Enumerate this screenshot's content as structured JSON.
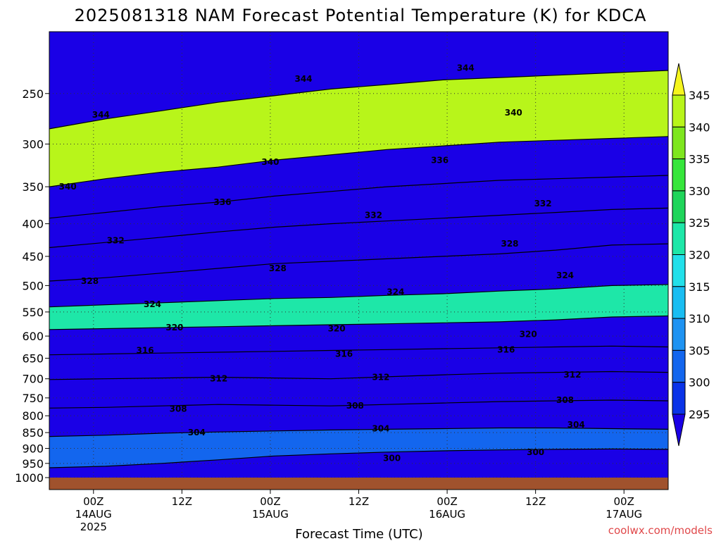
{
  "chart_data": {
    "type": "heatmap",
    "title": "2025081318 NAM Forecast Potential Temperature (K) for KDCA",
    "xlabel": "Forecast Time (UTC)",
    "ylabel": "",
    "credit": "coolwx.com/models",
    "x_ticks": [
      {
        "label": "00Z",
        "sub": "14AUG",
        "sub2": "2025",
        "hours": 6
      },
      {
        "label": "12Z",
        "sub": "",
        "sub2": "",
        "hours": 18
      },
      {
        "label": "00Z",
        "sub": "15AUG",
        "sub2": "",
        "hours": 30
      },
      {
        "label": "12Z",
        "sub": "",
        "sub2": "",
        "hours": 42
      },
      {
        "label": "00Z",
        "sub": "16AUG",
        "sub2": "",
        "hours": 54
      },
      {
        "label": "12Z",
        "sub": "",
        "sub2": "",
        "hours": 66
      },
      {
        "label": "00Z",
        "sub": "17AUG",
        "sub2": "",
        "hours": 78
      }
    ],
    "x_range_hours": [
      0,
      84
    ],
    "y_ticks": [
      250,
      300,
      350,
      400,
      450,
      500,
      550,
      600,
      650,
      700,
      750,
      800,
      850,
      900,
      950,
      1000
    ],
    "y_range_hpa": [
      200,
      1000
    ],
    "y_scale": "log-pressure (inverted)",
    "color_scale": {
      "levels": [
        295,
        300,
        305,
        310,
        315,
        320,
        325,
        330,
        335,
        340,
        345
      ],
      "colors": [
        "#1a00e6",
        "#0a33e8",
        "#1366ee",
        "#1e93f2",
        "#19bdf2",
        "#22e0ea",
        "#1ee7a8",
        "#1fd55a",
        "#36e63b",
        "#7ee61e",
        "#b8f51a",
        "#f5f51e"
      ]
    },
    "contours": [
      {
        "value": 300,
        "profile": [
          965,
          960,
          950,
          938,
          925,
          918,
          912,
          908,
          905,
          903,
          902,
          903
        ]
      },
      {
        "value": 304,
        "profile": [
          862,
          858,
          852,
          848,
          845,
          842,
          840,
          838,
          836,
          836,
          838,
          840
        ]
      },
      {
        "value": 308,
        "profile": [
          778,
          776,
          772,
          768,
          770,
          772,
          768,
          764,
          760,
          758,
          756,
          758
        ]
      },
      {
        "value": 312,
        "profile": [
          702,
          700,
          698,
          696,
          698,
          700,
          695,
          690,
          686,
          684,
          682,
          684
        ]
      },
      {
        "value": 316,
        "profile": [
          642,
          640,
          638,
          636,
          634,
          632,
          630,
          628,
          626,
          624,
          622,
          624
        ]
      },
      {
        "value": 320,
        "profile": [
          586,
          584,
          582,
          580,
          578,
          576,
          574,
          572,
          570,
          566,
          560,
          558
        ]
      },
      {
        "value": 324,
        "profile": [
          540,
          536,
          532,
          528,
          524,
          522,
          518,
          515,
          510,
          506,
          500,
          498
        ]
      },
      {
        "value": 328,
        "profile": [
          492,
          486,
          478,
          470,
          462,
          458,
          454,
          450,
          446,
          440,
          432,
          430
        ]
      },
      {
        "value": 332,
        "profile": [
          436,
          428,
          420,
          412,
          405,
          400,
          396,
          392,
          388,
          384,
          380,
          378
        ]
      },
      {
        "value": 336,
        "profile": [
          392,
          384,
          376,
          370,
          362,
          356,
          350,
          346,
          342,
          340,
          338,
          336
        ]
      },
      {
        "value": 340,
        "profile": [
          350,
          340,
          332,
          326,
          318,
          312,
          306,
          302,
          298,
          296,
          294,
          292
        ]
      },
      {
        "value": 344,
        "profile": [
          284,
          274,
          266,
          258,
          252,
          246,
          242,
          238,
          236,
          234,
          232,
          230
        ]
      }
    ],
    "contour_labels": [
      {
        "text": "344",
        "hours": 7,
        "hpa": 270
      },
      {
        "text": "344",
        "hours": 34.5,
        "hpa": 237
      },
      {
        "text": "344",
        "hours": 56.5,
        "hpa": 228
      },
      {
        "text": "340",
        "hours": 2.5,
        "hpa": 350
      },
      {
        "text": "340",
        "hours": 30,
        "hpa": 320
      },
      {
        "text": "340",
        "hours": 63,
        "hpa": 268
      },
      {
        "text": "336",
        "hours": 23.5,
        "hpa": 370
      },
      {
        "text": "336",
        "hours": 53,
        "hpa": 318
      },
      {
        "text": "332",
        "hours": 9,
        "hpa": 425
      },
      {
        "text": "332",
        "hours": 44,
        "hpa": 388
      },
      {
        "text": "332",
        "hours": 67,
        "hpa": 372
      },
      {
        "text": "328",
        "hours": 5.5,
        "hpa": 492
      },
      {
        "text": "328",
        "hours": 31,
        "hpa": 470
      },
      {
        "text": "328",
        "hours": 62.5,
        "hpa": 430
      },
      {
        "text": "324",
        "hours": 14,
        "hpa": 535
      },
      {
        "text": "324",
        "hours": 47,
        "hpa": 512
      },
      {
        "text": "324",
        "hours": 70,
        "hpa": 482
      },
      {
        "text": "320",
        "hours": 17,
        "hpa": 582
      },
      {
        "text": "320",
        "hours": 39,
        "hpa": 584
      },
      {
        "text": "320",
        "hours": 65,
        "hpa": 596
      },
      {
        "text": "316",
        "hours": 13,
        "hpa": 632
      },
      {
        "text": "316",
        "hours": 40,
        "hpa": 640
      },
      {
        "text": "316",
        "hours": 62,
        "hpa": 630
      },
      {
        "text": "312",
        "hours": 23,
        "hpa": 700
      },
      {
        "text": "312",
        "hours": 45,
        "hpa": 696
      },
      {
        "text": "312",
        "hours": 71,
        "hpa": 690
      },
      {
        "text": "308",
        "hours": 17.5,
        "hpa": 780
      },
      {
        "text": "308",
        "hours": 41.5,
        "hpa": 772
      },
      {
        "text": "308",
        "hours": 70,
        "hpa": 756
      },
      {
        "text": "304",
        "hours": 20,
        "hpa": 850
      },
      {
        "text": "304",
        "hours": 45,
        "hpa": 838
      },
      {
        "text": "304",
        "hours": 71.5,
        "hpa": 826
      },
      {
        "text": "300",
        "hours": 46.5,
        "hpa": 932
      },
      {
        "text": "300",
        "hours": 66,
        "hpa": 912
      }
    ],
    "legend": "right colorbar",
    "grid": true,
    "ground_color": "#a0522d"
  }
}
